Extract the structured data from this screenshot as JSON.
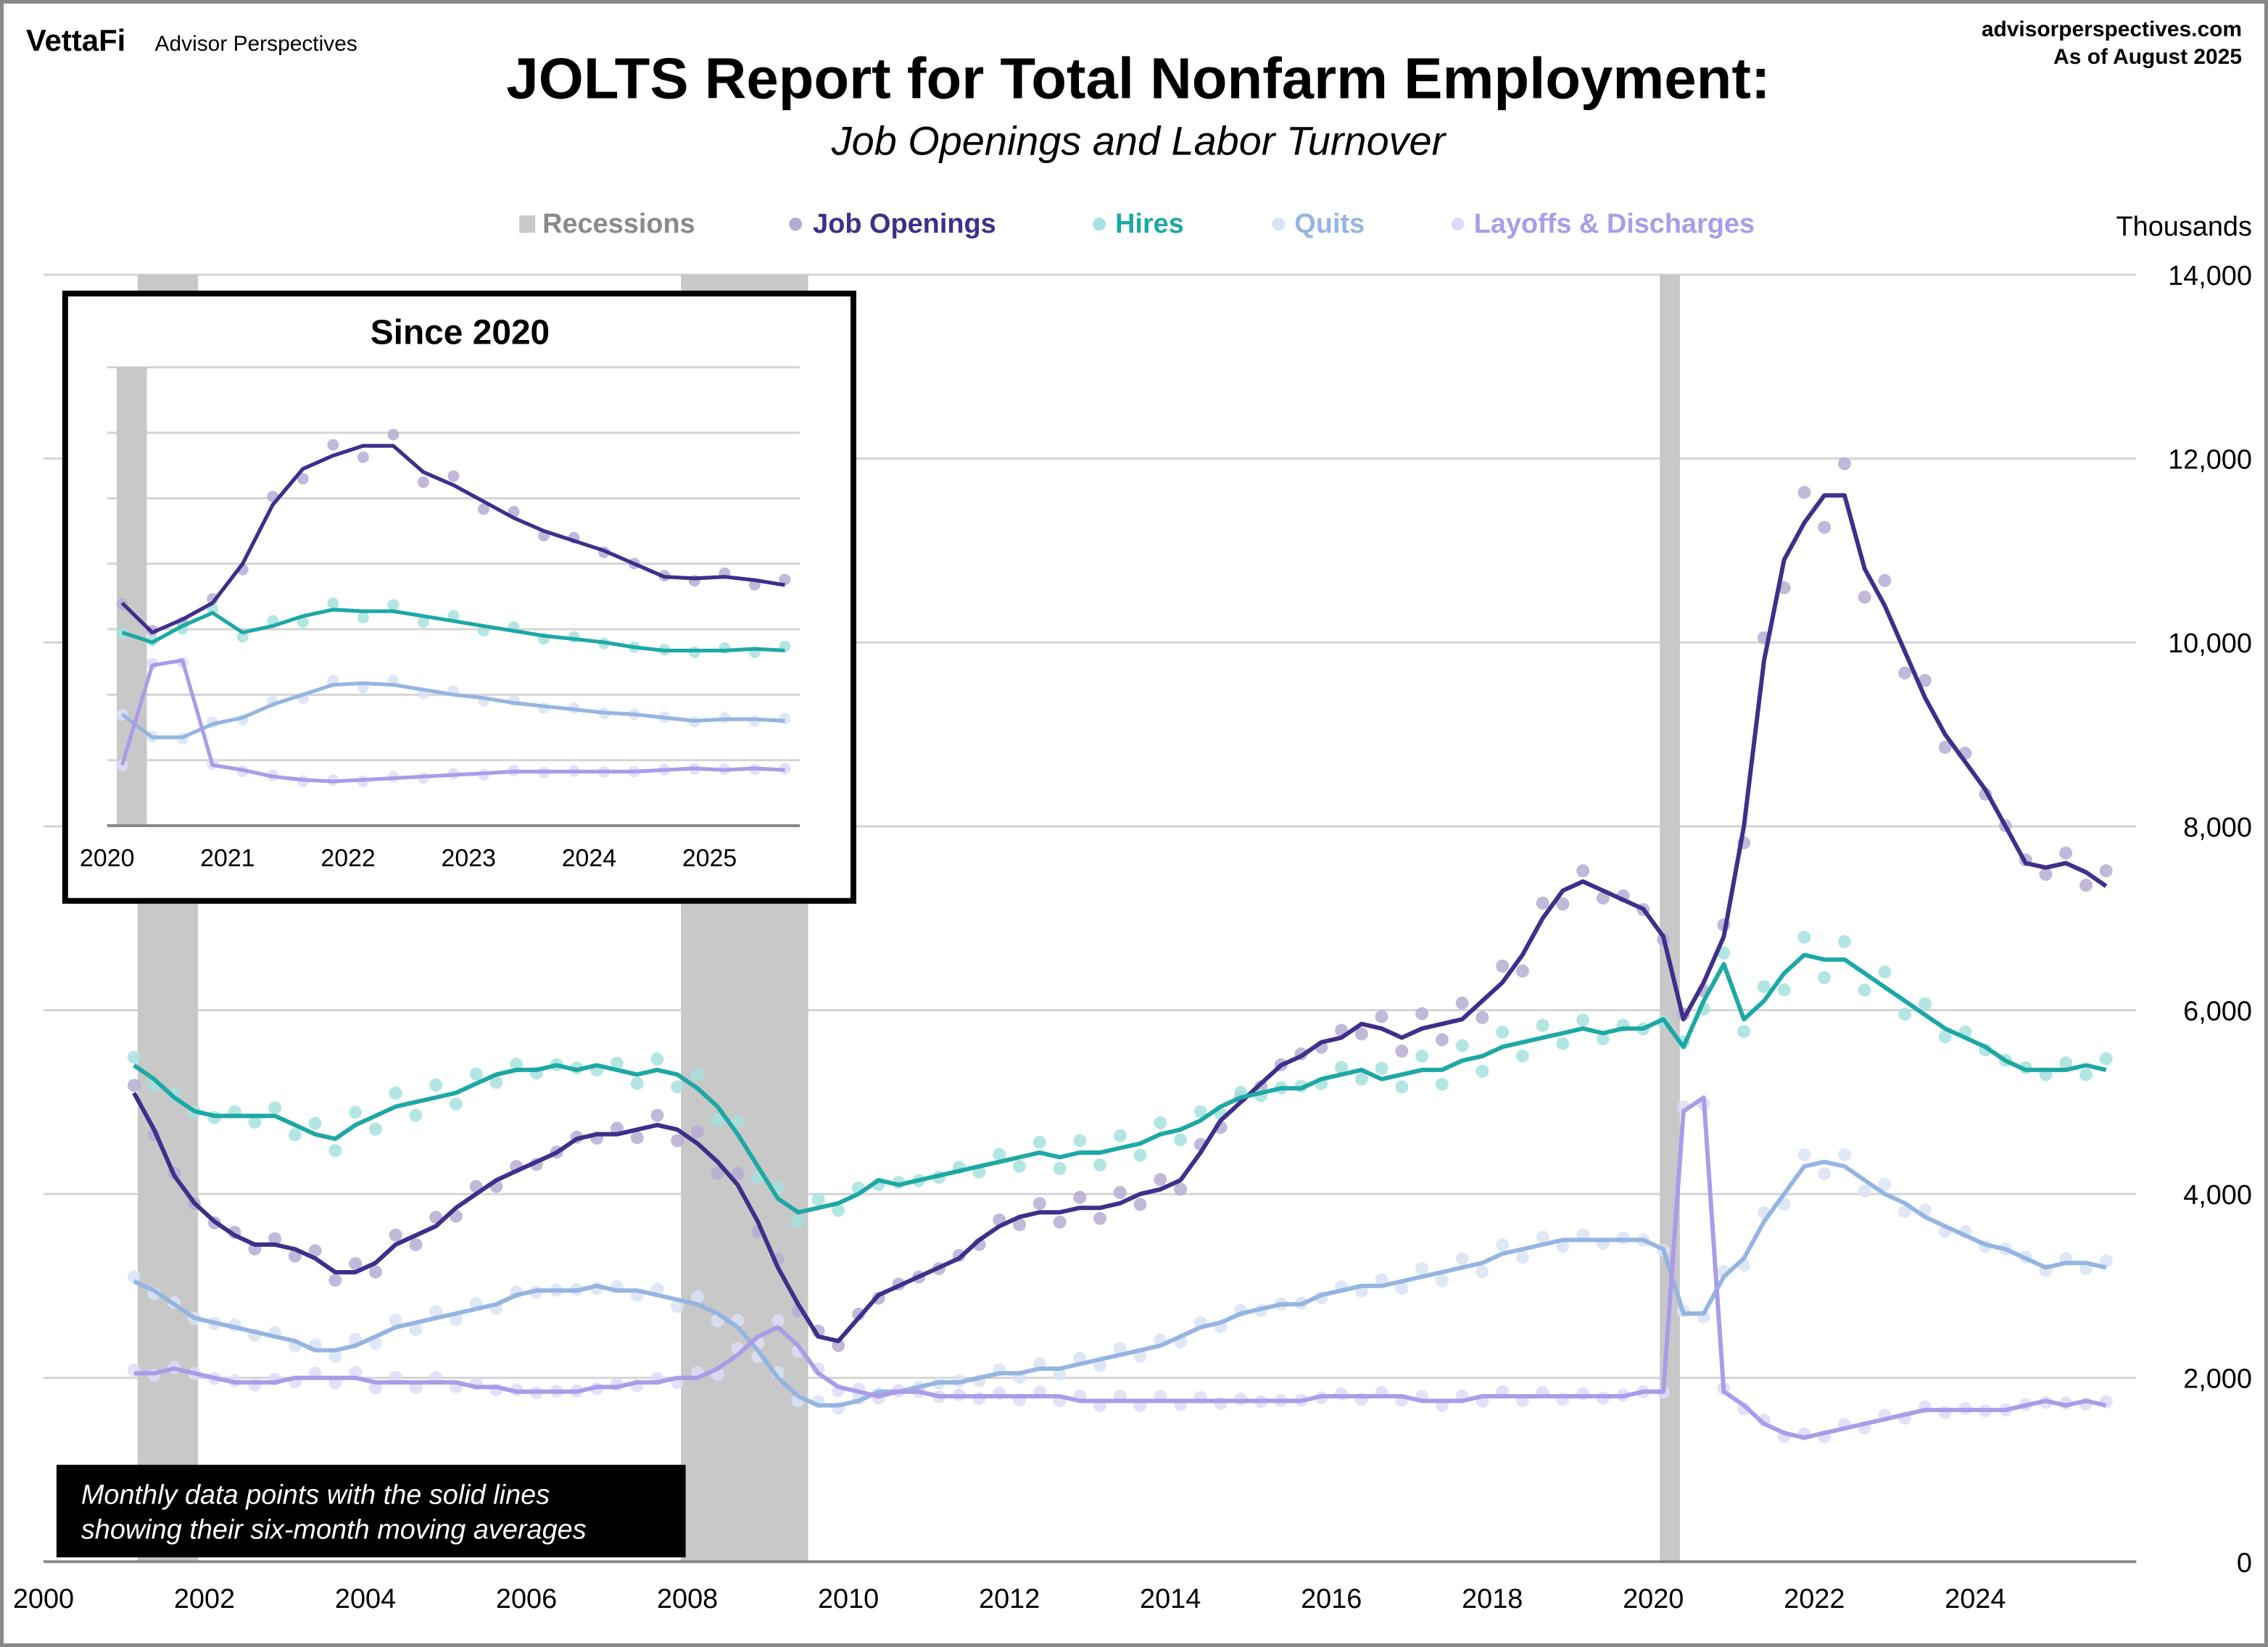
{
  "header": {
    "logo_brand": "VettaFi",
    "logo_sub": "Advisor Perspectives",
    "site": "advisorperspectives.com",
    "as_of": "As of August 2025"
  },
  "colors": {
    "recession": "#c8c8c8",
    "job_openings": "#3f2f8a",
    "job_openings_dots": "#b6acd4",
    "hires": "#1ea8a5",
    "hires_dots": "#a6e2de",
    "quits": "#95b5e1",
    "quits_dots": "#d9e3f5",
    "layoffs": "#aa9ce8",
    "layoffs_dots": "#e0daf8",
    "grid": "#d4d4d4"
  },
  "legend": {
    "recessions": "Recessions",
    "job_openings": "Job Openings",
    "hires": "Hires",
    "quits": "Quits",
    "layoffs": "Layoffs & Discharges"
  },
  "note": {
    "line1": "Monthly data points with the solid lines",
    "line2": "showing their six-month moving averages"
  },
  "chart_data": [
    {
      "type": "line",
      "title": "JOLTS Report for Total Nonfarm Employment:",
      "subtitle": "Job Openings and Labor Turnover",
      "ylabel": "Thousands",
      "xlim": [
        2000,
        2026
      ],
      "ylim": [
        0,
        14000
      ],
      "x_ticks": [
        "2000",
        "2002",
        "2004",
        "2006",
        "2008",
        "2010",
        "2012",
        "2014",
        "2016",
        "2018",
        "2020",
        "2022",
        "2024"
      ],
      "y_ticks": [
        "0",
        "2,000",
        "4,000",
        "6,000",
        "8,000",
        "10,000",
        "12,000",
        "14,000"
      ],
      "grid": true,
      "legend_placement": "top",
      "recessions": [
        [
          2001.17,
          2001.92
        ],
        [
          2007.92,
          2009.5
        ],
        [
          2020.08,
          2020.33
        ]
      ],
      "frequency": "quarterly",
      "start": "2001-Q1",
      "series": [
        {
          "name": "Job Openings",
          "key": "job_openings",
          "values": [
            5100,
            4700,
            4200,
            3900,
            3700,
            3550,
            3450,
            3450,
            3400,
            3300,
            3150,
            3150,
            3250,
            3450,
            3550,
            3650,
            3850,
            4000,
            4150,
            4250,
            4350,
            4450,
            4600,
            4650,
            4650,
            4700,
            4750,
            4700,
            4550,
            4350,
            4100,
            3700,
            3200,
            2800,
            2450,
            2400,
            2650,
            2900,
            3000,
            3100,
            3200,
            3300,
            3500,
            3650,
            3750,
            3800,
            3800,
            3850,
            3850,
            3900,
            4000,
            4050,
            4150,
            4450,
            4800,
            5000,
            5200,
            5400,
            5500,
            5650,
            5700,
            5850,
            5800,
            5700,
            5800,
            5850,
            5900,
            6100,
            6300,
            6600,
            7000,
            7300,
            7400,
            7300,
            7200,
            7100,
            6800,
            5900,
            6300,
            6800,
            8000,
            9800,
            10900,
            11300,
            11600,
            11600,
            10800,
            10400,
            9900,
            9400,
            9000,
            8700,
            8400,
            8000,
            7600,
            7550,
            7600,
            7500,
            7350
          ]
        },
        {
          "name": "Hires",
          "key": "hires",
          "values": [
            5400,
            5250,
            5050,
            4900,
            4850,
            4850,
            4850,
            4850,
            4750,
            4650,
            4600,
            4750,
            4850,
            4950,
            5000,
            5050,
            5100,
            5200,
            5300,
            5350,
            5350,
            5400,
            5350,
            5400,
            5350,
            5300,
            5350,
            5300,
            5150,
            4950,
            4650,
            4300,
            3950,
            3800,
            3850,
            3900,
            4000,
            4150,
            4100,
            4150,
            4200,
            4250,
            4300,
            4350,
            4400,
            4450,
            4400,
            4450,
            4450,
            4500,
            4550,
            4650,
            4700,
            4800,
            4950,
            5050,
            5100,
            5150,
            5150,
            5250,
            5300,
            5350,
            5250,
            5300,
            5350,
            5350,
            5450,
            5500,
            5600,
            5650,
            5700,
            5750,
            5800,
            5750,
            5800,
            5800,
            5900,
            5600,
            6100,
            6500,
            5900,
            6100,
            6400,
            6600,
            6550,
            6550,
            6400,
            6250,
            6100,
            5950,
            5800,
            5700,
            5600,
            5450,
            5350,
            5350,
            5350,
            5400,
            5350
          ]
        },
        {
          "name": "Quits",
          "key": "quits",
          "values": [
            3050,
            2950,
            2800,
            2650,
            2600,
            2550,
            2500,
            2450,
            2400,
            2300,
            2300,
            2350,
            2450,
            2550,
            2600,
            2650,
            2700,
            2750,
            2800,
            2900,
            2950,
            2950,
            2950,
            3000,
            2950,
            2950,
            2900,
            2850,
            2800,
            2700,
            2550,
            2300,
            2000,
            1800,
            1700,
            1700,
            1750,
            1850,
            1850,
            1900,
            1950,
            1950,
            2000,
            2050,
            2050,
            2100,
            2100,
            2150,
            2200,
            2250,
            2300,
            2350,
            2450,
            2550,
            2600,
            2700,
            2750,
            2800,
            2800,
            2900,
            2950,
            3000,
            3000,
            3050,
            3100,
            3150,
            3200,
            3250,
            3350,
            3400,
            3450,
            3500,
            3500,
            3500,
            3500,
            3500,
            3400,
            2700,
            2700,
            3100,
            3300,
            3700,
            4000,
            4300,
            4350,
            4300,
            4150,
            4000,
            3900,
            3750,
            3650,
            3550,
            3450,
            3400,
            3300,
            3200,
            3250,
            3250,
            3200
          ]
        },
        {
          "name": "Layoffs & Discharges",
          "key": "layoffs",
          "values": [
            2050,
            2050,
            2100,
            2050,
            2000,
            1950,
            1950,
            1950,
            2000,
            2000,
            2000,
            2000,
            1950,
            1950,
            1950,
            1950,
            1950,
            1900,
            1900,
            1850,
            1850,
            1850,
            1850,
            1900,
            1900,
            1950,
            1950,
            2000,
            2000,
            2100,
            2250,
            2450,
            2550,
            2350,
            2050,
            1900,
            1850,
            1800,
            1850,
            1850,
            1800,
            1800,
            1800,
            1800,
            1800,
            1800,
            1800,
            1750,
            1750,
            1750,
            1750,
            1750,
            1750,
            1750,
            1750,
            1750,
            1750,
            1750,
            1750,
            1800,
            1800,
            1800,
            1800,
            1800,
            1750,
            1750,
            1750,
            1800,
            1800,
            1800,
            1800,
            1800,
            1800,
            1800,
            1800,
            1850,
            1850,
            4900,
            5050,
            1850,
            1700,
            1500,
            1400,
            1350,
            1400,
            1450,
            1500,
            1550,
            1600,
            1650,
            1650,
            1650,
            1650,
            1650,
            1700,
            1750,
            1700,
            1750,
            1700
          ]
        }
      ]
    },
    {
      "type": "line",
      "title": "Since 2020",
      "xlim": [
        2020,
        2025.75
      ],
      "ylim": [
        0,
        14000
      ],
      "x_ticks": [
        "2020",
        "2021",
        "2022",
        "2023",
        "2024",
        "2025"
      ],
      "recessions": [
        [
          2020.08,
          2020.33
        ]
      ],
      "series_from": "2020-Q1 onward of the main chart series"
    }
  ]
}
